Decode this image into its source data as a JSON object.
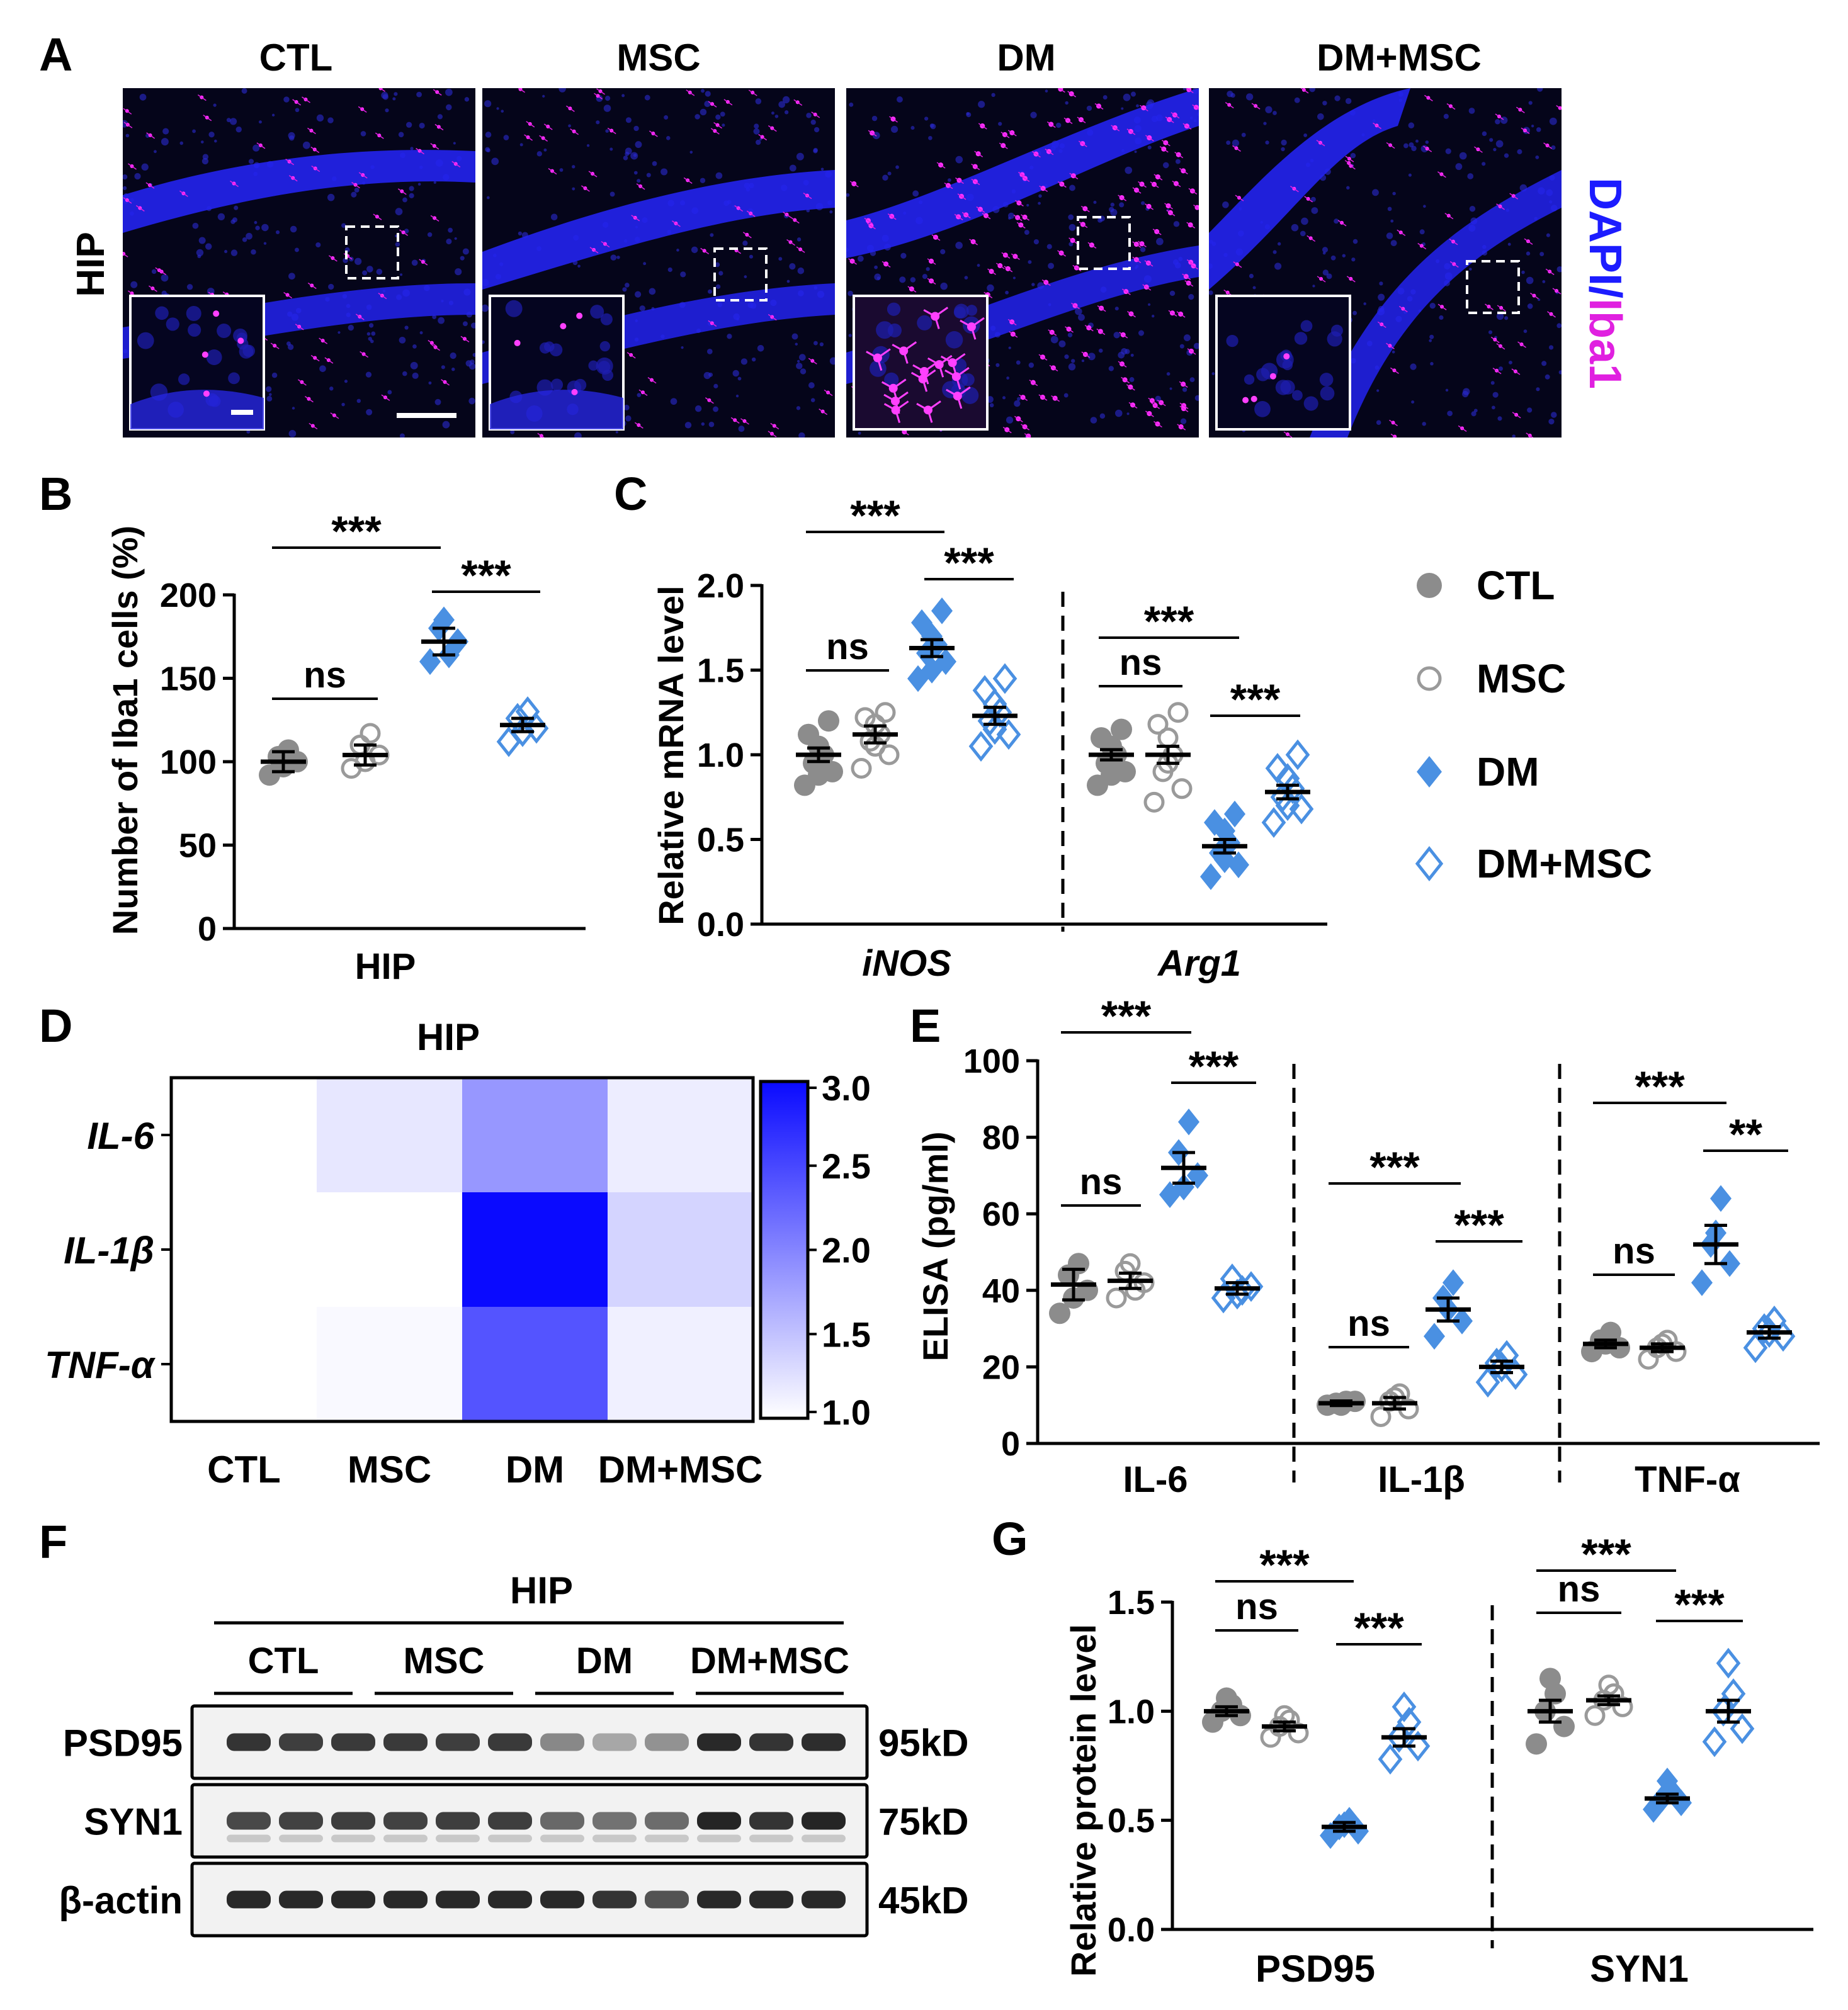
{
  "colors": {
    "ctl": "#7f7f7f",
    "msc": "#9a9a9a",
    "dm": "#4a90e2",
    "dmmsc": "#4a90e2",
    "dapi": "#1c1cff",
    "iba1": "#e020e0",
    "heat_max": "#0a0aff",
    "heat_min": "#ffffff"
  },
  "panel_a": {
    "letter": "A",
    "columns": [
      "CTL",
      "MSC",
      "DM",
      "DM+MSC"
    ],
    "row_label": "HIP",
    "stain_dapi": "DAPI",
    "stain_slash": "/",
    "stain_iba1": "Iba1"
  },
  "legend": {
    "items": [
      {
        "name": "CTL",
        "marker": "filled-circle",
        "color": "#8c8c8c"
      },
      {
        "name": "MSC",
        "marker": "open-circle",
        "color": "#9a9a9a"
      },
      {
        "name": "DM",
        "marker": "filled-diamond",
        "color": "#4a90e2"
      },
      {
        "name": "DM+MSC",
        "marker": "open-diamond",
        "color": "#4a90e2"
      }
    ]
  },
  "chart_data": [
    {
      "panel": "B",
      "type": "scatter",
      "ylabel": "Number of Iba1 cells (%)",
      "xlabel": "HIP",
      "ylim": [
        0,
        200
      ],
      "yticks": [
        0,
        50,
        100,
        150,
        200
      ],
      "groups": [
        {
          "name": "CTL",
          "mean": 100,
          "sem": 6,
          "points": [
            92,
            100,
            103,
            107,
            97
          ]
        },
        {
          "name": "MSC",
          "mean": 104,
          "sem": 6,
          "points": [
            96,
            104,
            110,
            117,
            100
          ]
        },
        {
          "name": "DM",
          "mean": 172,
          "sem": 8,
          "points": [
            160,
            172,
            180,
            164,
            185
          ]
        },
        {
          "name": "DM+MSC",
          "mean": 122,
          "sem": 4,
          "points": [
            112,
            120,
            126,
            130,
            118
          ]
        }
      ],
      "sig": [
        {
          "from": 0,
          "to": 2,
          "label": "***"
        },
        {
          "from": 2,
          "to": 3,
          "label": "***"
        },
        {
          "from": 0,
          "to": 1,
          "label": "ns"
        }
      ]
    },
    {
      "panel": "C",
      "type": "scatter",
      "ylabel": "Relative mRNA level",
      "ylim": [
        0,
        2.0
      ],
      "yticks": [
        "0.0",
        "0.5",
        "1.0",
        "1.5",
        "2.0"
      ],
      "categories": [
        "iNOS",
        "Arg1"
      ],
      "groups": {
        "iNOS": [
          {
            "name": "CTL",
            "mean": 1.0,
            "sem": 0.04,
            "points": [
              0.82,
              0.9,
              0.95,
              1.0,
              1.05,
              1.12,
              1.2,
              0.88
            ]
          },
          {
            "name": "MSC",
            "mean": 1.12,
            "sem": 0.05,
            "points": [
              0.92,
              1.0,
              1.08,
              1.12,
              1.18,
              1.22,
              1.25,
              1.05
            ]
          },
          {
            "name": "DM",
            "mean": 1.63,
            "sem": 0.05,
            "points": [
              1.45,
              1.55,
              1.6,
              1.65,
              1.7,
              1.78,
              1.85,
              1.5
            ]
          },
          {
            "name": "DM+MSC",
            "mean": 1.23,
            "sem": 0.05,
            "points": [
              1.05,
              1.12,
              1.2,
              1.25,
              1.3,
              1.38,
              1.45,
              1.15
            ]
          }
        ],
        "Arg1": [
          {
            "name": "CTL",
            "mean": 1.0,
            "sem": 0.03,
            "points": [
              0.82,
              0.9,
              0.95,
              1.0,
              1.05,
              1.1,
              1.15,
              0.88
            ]
          },
          {
            "name": "MSC",
            "mean": 1.0,
            "sem": 0.05,
            "points": [
              0.72,
              0.8,
              0.9,
              1.0,
              1.1,
              1.18,
              1.25,
              0.95
            ]
          },
          {
            "name": "DM",
            "mean": 0.46,
            "sem": 0.04,
            "points": [
              0.28,
              0.35,
              0.42,
              0.48,
              0.55,
              0.6,
              0.65,
              0.38
            ]
          },
          {
            "name": "DM+MSC",
            "mean": 0.78,
            "sem": 0.04,
            "points": [
              0.6,
              0.68,
              0.75,
              0.8,
              0.86,
              0.92,
              1.0,
              0.7
            ]
          }
        ]
      },
      "sig": {
        "iNOS": [
          {
            "from": 0,
            "to": 2,
            "label": "***"
          },
          {
            "from": 2,
            "to": 3,
            "label": "***"
          },
          {
            "from": 0,
            "to": 1,
            "label": "ns"
          }
        ],
        "Arg1": [
          {
            "from": 0,
            "to": 2,
            "label": "***"
          },
          {
            "from": 2,
            "to": 3,
            "label": "***"
          },
          {
            "from": 0,
            "to": 1,
            "label": "ns"
          }
        ]
      }
    },
    {
      "panel": "D",
      "type": "heatmap",
      "title": "HIP",
      "rows": [
        "IL-6",
        "IL-1β",
        "TNF-α"
      ],
      "cols": [
        "CTL",
        "MSC",
        "DM",
        "DM+MSC"
      ],
      "values": [
        [
          1.0,
          1.2,
          1.85,
          1.15
        ],
        [
          1.0,
          0.95,
          3.0,
          1.35
        ],
        [
          1.0,
          1.05,
          2.4,
          1.12
        ]
      ],
      "colorbar": {
        "min": 1.0,
        "max": 3.0,
        "ticks": [
          "1.0",
          "1.5",
          "2.0",
          "2.5",
          "3.0"
        ]
      }
    },
    {
      "panel": "E",
      "type": "scatter",
      "ylabel": "ELISA (pg/ml)",
      "ylim": [
        0,
        100
      ],
      "yticks": [
        0,
        20,
        40,
        60,
        80,
        100
      ],
      "categories": [
        "IL-6",
        "IL-1β",
        "TNF-α"
      ],
      "groups": {
        "IL-6": [
          {
            "name": "CTL",
            "mean": 41.5,
            "sem": 4,
            "points": [
              34,
              40,
              44,
              47,
              38
            ]
          },
          {
            "name": "MSC",
            "mean": 42.5,
            "sem": 2,
            "points": [
              38,
              42,
              45,
              40,
              47
            ]
          },
          {
            "name": "DM",
            "mean": 72,
            "sem": 4,
            "points": [
              65,
              70,
              76,
              84,
              67
            ]
          },
          {
            "name": "DM+MSC",
            "mean": 40.5,
            "sem": 1.5,
            "points": [
              38,
              41,
              43,
              40,
              39
            ]
          }
        ],
        "IL-1β": [
          {
            "name": "CTL",
            "mean": 10.5,
            "sem": 0.6,
            "points": [
              10,
              11,
              10.5,
              11,
              10
            ]
          },
          {
            "name": "MSC",
            "mean": 10.5,
            "sem": 1.5,
            "points": [
              7,
              9,
              11,
              13,
              12
            ]
          },
          {
            "name": "DM",
            "mean": 35,
            "sem": 3,
            "points": [
              28,
              32,
              38,
              42,
              35
            ]
          },
          {
            "name": "DM+MSC",
            "mean": 20,
            "sem": 1.5,
            "points": [
              16,
              18,
              21,
              23,
              20
            ]
          }
        ],
        "TNF-α": [
          {
            "name": "CTL",
            "mean": 26,
            "sem": 1,
            "points": [
              24,
              25,
              27,
              29,
              26
            ]
          },
          {
            "name": "MSC",
            "mean": 25,
            "sem": 1,
            "points": [
              22,
              24,
              25,
              27,
              26
            ]
          },
          {
            "name": "DM",
            "mean": 52,
            "sem": 5,
            "points": [
              42,
              47,
              52,
              64,
              55
            ]
          },
          {
            "name": "DM+MSC",
            "mean": 29,
            "sem": 1.5,
            "points": [
              25,
              28,
              30,
              32,
              29
            ]
          }
        ]
      },
      "sig": {
        "IL-6": [
          {
            "from": 0,
            "to": 2,
            "label": "***"
          },
          {
            "from": 2,
            "to": 3,
            "label": "***"
          },
          {
            "from": 0,
            "to": 1,
            "label": "ns"
          }
        ],
        "IL-1β": [
          {
            "from": 0,
            "to": 2,
            "label": "***"
          },
          {
            "from": 2,
            "to": 3,
            "label": "***"
          },
          {
            "from": 0,
            "to": 1,
            "label": "ns"
          }
        ],
        "TNF-α": [
          {
            "from": 0,
            "to": 2,
            "label": "***"
          },
          {
            "from": 2,
            "to": 3,
            "label": "**"
          },
          {
            "from": 0,
            "to": 1,
            "label": "ns"
          }
        ]
      }
    },
    {
      "panel": "G",
      "type": "scatter",
      "ylabel": "Relative protein level",
      "ylim": [
        0,
        1.5
      ],
      "yticks": [
        "0.0",
        "0.5",
        "1.0",
        "1.5"
      ],
      "categories": [
        "PSD95",
        "SYN1"
      ],
      "groups": {
        "PSD95": [
          {
            "name": "CTL",
            "mean": 1.0,
            "sem": 0.02,
            "points": [
              0.95,
              0.98,
              1.0,
              1.03,
              1.06
            ]
          },
          {
            "name": "MSC",
            "mean": 0.93,
            "sem": 0.02,
            "points": [
              0.88,
              0.9,
              0.93,
              0.96,
              0.98
            ]
          },
          {
            "name": "DM",
            "mean": 0.47,
            "sem": 0.02,
            "points": [
              0.43,
              0.45,
              0.47,
              0.5,
              0.48
            ]
          },
          {
            "name": "DM+MSC",
            "mean": 0.88,
            "sem": 0.04,
            "points": [
              0.78,
              0.84,
              0.88,
              0.95,
              1.02
            ]
          }
        ],
        "SYN1": [
          {
            "name": "CTL",
            "mean": 1.0,
            "sem": 0.05,
            "points": [
              0.85,
              0.93,
              1.0,
              1.08,
              1.15
            ]
          },
          {
            "name": "MSC",
            "mean": 1.05,
            "sem": 0.02,
            "points": [
              0.98,
              1.02,
              1.05,
              1.08,
              1.12
            ]
          },
          {
            "name": "DM",
            "mean": 0.6,
            "sem": 0.02,
            "points": [
              0.55,
              0.58,
              0.6,
              0.63,
              0.68
            ]
          },
          {
            "name": "DM+MSC",
            "mean": 1.0,
            "sem": 0.05,
            "points": [
              0.86,
              0.92,
              1.0,
              1.08,
              1.22
            ]
          }
        ]
      },
      "sig": {
        "PSD95": [
          {
            "from": 0,
            "to": 2,
            "label": "***"
          },
          {
            "from": 2,
            "to": 3,
            "label": "***"
          },
          {
            "from": 0,
            "to": 1,
            "label": "ns"
          }
        ],
        "SYN1": [
          {
            "from": 0,
            "to": 2,
            "label": "***"
          },
          {
            "from": 2,
            "to": 3,
            "label": "***"
          },
          {
            "from": 0,
            "to": 1,
            "label": "ns"
          }
        ]
      }
    }
  ],
  "panel_letters": {
    "b": "B",
    "c": "C",
    "d": "D",
    "e": "E",
    "f": "F",
    "g": "G"
  },
  "panel_f": {
    "title": "HIP",
    "groups": [
      "CTL",
      "MSC",
      "DM",
      "DM+MSC"
    ],
    "bands": [
      {
        "name": "PSD95",
        "size": "95kD",
        "intensity": [
          0.85,
          0.8,
          0.82,
          0.82,
          0.8,
          0.82,
          0.45,
          0.3,
          0.4,
          0.9,
          0.85,
          0.88
        ]
      },
      {
        "name": "SYN1",
        "size": "75kD",
        "intensity": [
          0.75,
          0.78,
          0.8,
          0.78,
          0.8,
          0.8,
          0.6,
          0.55,
          0.58,
          0.92,
          0.85,
          0.92
        ]
      },
      {
        "name": "β-actin",
        "size": "45kD",
        "intensity": [
          0.9,
          0.9,
          0.9,
          0.9,
          0.9,
          0.9,
          0.9,
          0.85,
          0.7,
          0.9,
          0.9,
          0.9
        ]
      }
    ]
  }
}
